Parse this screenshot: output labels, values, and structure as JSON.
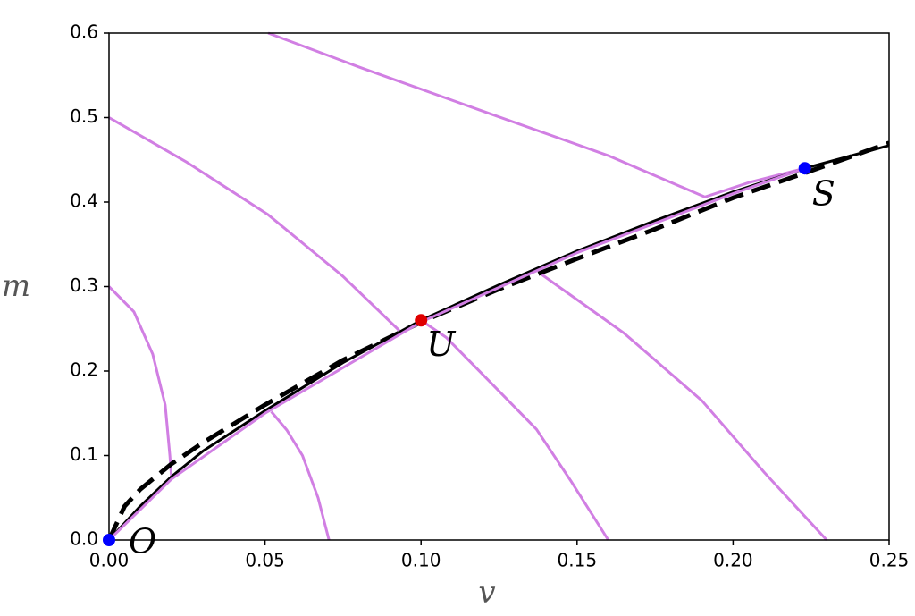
{
  "chart_data": {
    "type": "line",
    "xlabel": "v",
    "ylabel": "m",
    "xlim": [
      0,
      0.25
    ],
    "ylim": [
      0,
      0.6
    ],
    "xticks": [
      {
        "value": 0,
        "label": "0.00"
      },
      0.05,
      {
        "value": 0.1,
        "label": "0.10"
      },
      0.15,
      {
        "value": 0.2,
        "label": "0.20"
      },
      0.25
    ],
    "yticks": [
      {
        "value": 0,
        "label": "0.0"
      },
      0.1,
      0.2,
      0.3,
      0.4,
      0.5,
      0.6
    ],
    "series": [
      {
        "color": "#d17fe3",
        "x": [
          0.051,
          0.08,
          0.121,
          0.16,
          0.191,
          0.205,
          0.223
        ],
        "values": [
          0.6,
          0.56,
          0.506,
          0.455,
          0.406,
          0.423,
          0.44
        ]
      },
      {
        "color": "#d17fe3",
        "x": [
          0,
          0.025,
          0.051,
          0.075,
          0.093
        ],
        "values": [
          0.5,
          0.447,
          0.385,
          0.312,
          0.248
        ]
      },
      {
        "color": "#d17fe3",
        "x": [
          0,
          0.008,
          0.014,
          0.018,
          0.0195,
          0.02
        ],
        "values": [
          0.3,
          0.27,
          0.22,
          0.16,
          0.1,
          0.075
        ]
      },
      {
        "color": "#d17fe3",
        "x": [
          0.0705,
          0.067,
          0.062,
          0.057,
          0.052
        ],
        "values": [
          0,
          0.05,
          0.1,
          0.13,
          0.152
        ]
      },
      {
        "color": "#d17fe3",
        "x": [
          0.16,
          0.148,
          0.137,
          0.12,
          0.108,
          0.1
        ],
        "values": [
          0,
          0.07,
          0.131,
          0.195,
          0.24,
          0.26
        ]
      },
      {
        "color": "#d17fe3",
        "x": [
          0.23,
          0.21,
          0.19,
          0.165,
          0.138
        ],
        "values": [
          0,
          0.08,
          0.165,
          0.245,
          0.316
        ]
      },
      {
        "color": "#000000",
        "x": [
          0,
          0.01,
          0.02,
          0.03,
          0.05,
          0.075,
          0.1,
          0.125,
          0.15,
          0.175,
          0.2,
          0.225,
          0.25
        ],
        "values": [
          0,
          0.04,
          0.075,
          0.105,
          0.153,
          0.21,
          0.26,
          0.302,
          0.342,
          0.378,
          0.412,
          0.442,
          0.467
        ]
      },
      {
        "color": "#000000",
        "dashed": true,
        "x": [
          0,
          0.005,
          0.01,
          0.02,
          0.03,
          0.05,
          0.075,
          0.1,
          0.125,
          0.15,
          0.175,
          0.2,
          0.225,
          0.25
        ],
        "values": [
          0,
          0.04,
          0.06,
          0.09,
          0.115,
          0.16,
          0.213,
          0.258,
          0.297,
          0.333,
          0.368,
          0.405,
          0.437,
          0.47
        ]
      },
      {
        "color": "#d17fe3",
        "x": [
          0,
          0.02,
          0.05,
          0.1,
          0.15,
          0.2,
          0.223
        ],
        "values": [
          0,
          0.072,
          0.15,
          0.258,
          0.34,
          0.41,
          0.44
        ]
      }
    ],
    "points": [
      {
        "x": 0,
        "y": 0,
        "color": "#0000ff",
        "label": "O"
      },
      {
        "x": 0.1,
        "y": 0.26,
        "color": "#e00000",
        "label": "U"
      },
      {
        "x": 0.223,
        "y": 0.44,
        "color": "#0000ff",
        "label": "S"
      }
    ]
  }
}
